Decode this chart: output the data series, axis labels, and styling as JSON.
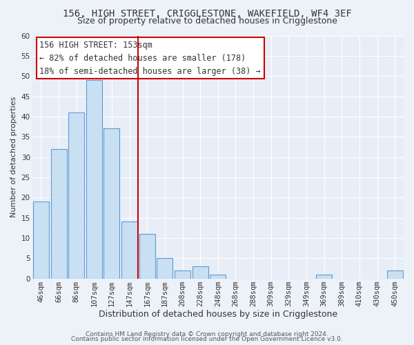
{
  "title": "156, HIGH STREET, CRIGGLESTONE, WAKEFIELD, WF4 3EF",
  "subtitle": "Size of property relative to detached houses in Crigglestone",
  "xlabel": "Distribution of detached houses by size in Crigglestone",
  "ylabel": "Number of detached properties",
  "bar_labels": [
    "46sqm",
    "66sqm",
    "86sqm",
    "107sqm",
    "127sqm",
    "147sqm",
    "167sqm",
    "187sqm",
    "208sqm",
    "228sqm",
    "248sqm",
    "268sqm",
    "288sqm",
    "309sqm",
    "329sqm",
    "349sqm",
    "369sqm",
    "389sqm",
    "410sqm",
    "430sqm",
    "450sqm"
  ],
  "bar_heights": [
    19,
    32,
    41,
    49,
    37,
    14,
    11,
    5,
    2,
    3,
    1,
    0,
    0,
    0,
    0,
    0,
    1,
    0,
    0,
    0,
    2
  ],
  "bar_color": "#c9dff2",
  "bar_edge_color": "#5b9bd5",
  "vline_x": 5.5,
  "vline_color": "#cc0000",
  "annotation_title": "156 HIGH STREET: 153sqm",
  "annotation_line1": "← 82% of detached houses are smaller (178)",
  "annotation_line2": "18% of semi-detached houses are larger (38) →",
  "annotation_box_color": "#ffffff",
  "annotation_box_edge": "#cc0000",
  "ylim": [
    0,
    60
  ],
  "yticks": [
    0,
    5,
    10,
    15,
    20,
    25,
    30,
    35,
    40,
    45,
    50,
    55,
    60
  ],
  "footer_line1": "Contains HM Land Registry data © Crown copyright and database right 2024.",
  "footer_line2": "Contains public sector information licensed under the Open Government Licence v3.0.",
  "bg_color": "#edf2f9",
  "plot_bg_color": "#e8eef7",
  "grid_color": "#ffffff",
  "title_fontsize": 10,
  "subtitle_fontsize": 9,
  "xlabel_fontsize": 9,
  "ylabel_fontsize": 8,
  "tick_fontsize": 7.5,
  "footer_fontsize": 6.5,
  "annotation_fontsize": 8.5
}
